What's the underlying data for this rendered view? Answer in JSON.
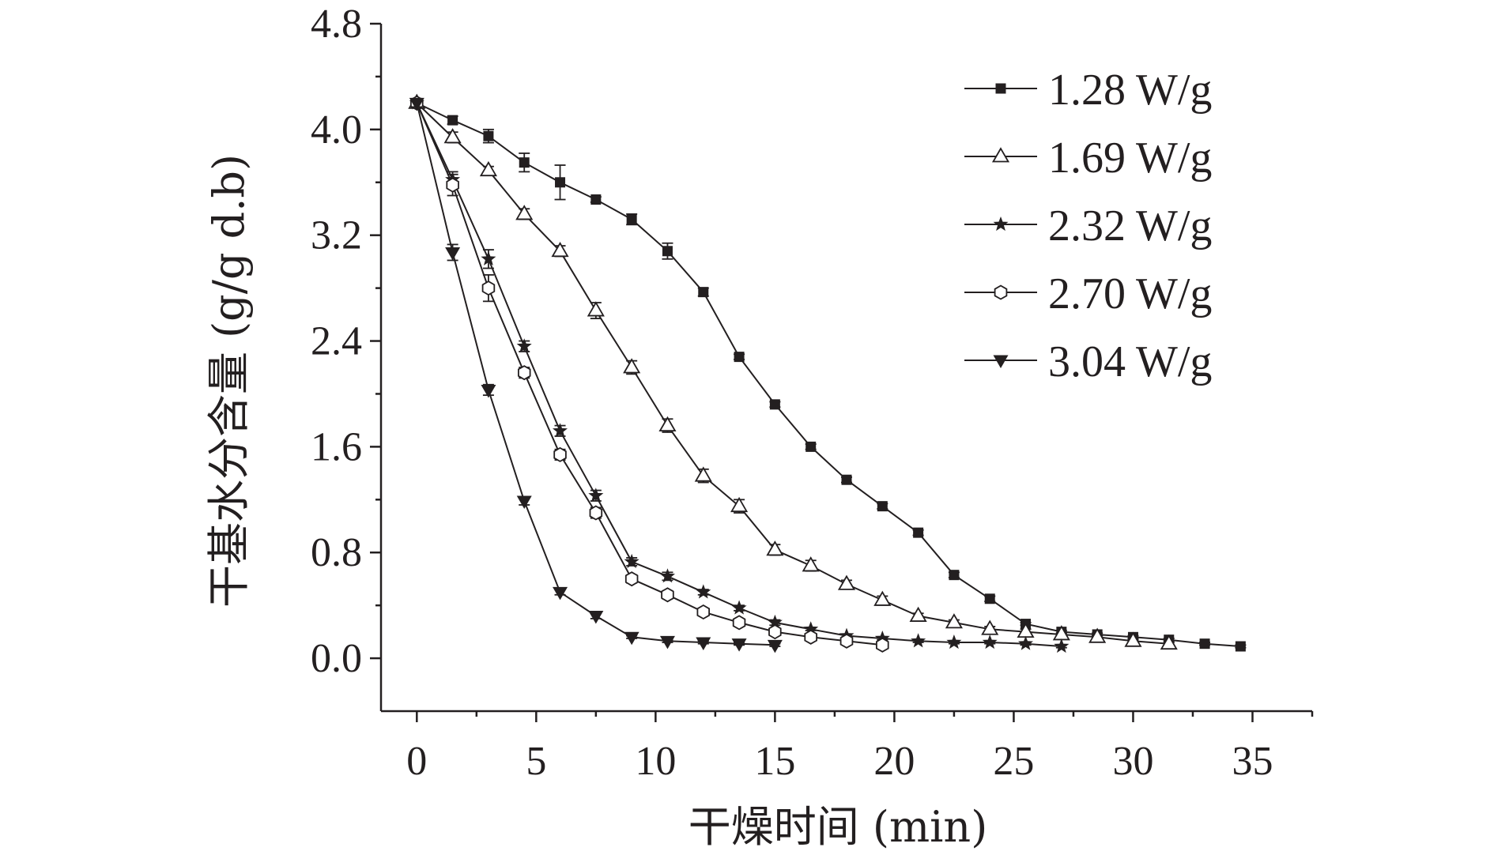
{
  "chart_data": {
    "type": "line",
    "xlabel": "干燥时间 (min)",
    "ylabel": "干基水分含量 (g/g d.b)",
    "xlim": [
      -1.5,
      37.5
    ],
    "ylim": [
      -0.4,
      4.8
    ],
    "xticks": [
      0,
      5,
      10,
      15,
      20,
      25,
      30,
      35
    ],
    "yticks": [
      0.0,
      0.8,
      1.6,
      2.4,
      3.2,
      4.0,
      4.8
    ],
    "ytick_labels": [
      "0.0",
      "0.8",
      "1.6",
      "2.4",
      "3.2",
      "4.0",
      "4.8"
    ],
    "grid": false,
    "legend_position": "top-right",
    "series": [
      {
        "name": "1.28 W/g",
        "marker": "square-filled",
        "x": [
          0,
          1.5,
          3,
          4.5,
          6,
          7.5,
          9,
          10.5,
          12,
          13.5,
          15,
          16.5,
          18,
          19.5,
          21,
          22.5,
          24,
          25.5,
          27,
          28.5,
          30,
          31.5,
          33,
          34.5
        ],
        "y": [
          4.2,
          4.07,
          3.95,
          3.75,
          3.6,
          3.47,
          3.32,
          3.08,
          2.77,
          2.28,
          1.92,
          1.6,
          1.35,
          1.15,
          0.95,
          0.63,
          0.45,
          0.26,
          0.2,
          0.18,
          0.16,
          0.14,
          0.11,
          0.09
        ],
        "err": [
          0.03,
          0.03,
          0.05,
          0.07,
          0.13,
          0.02,
          0.04,
          0.06,
          0.03,
          0.02,
          0.02,
          0.02,
          0.02,
          0.02,
          0.02,
          0.02,
          0.02,
          0.01,
          0.01,
          0.01,
          0.01,
          0.01,
          0.01,
          0.01
        ]
      },
      {
        "name": "1.69 W/g",
        "marker": "triangle-open",
        "x": [
          0,
          1.5,
          3,
          4.5,
          6,
          7.5,
          9,
          10.5,
          12,
          13.5,
          15,
          16.5,
          18,
          19.5,
          21,
          22.5,
          24,
          25.5,
          27,
          28.5,
          30,
          31.5
        ],
        "y": [
          4.2,
          3.94,
          3.69,
          3.36,
          3.08,
          2.63,
          2.2,
          1.76,
          1.38,
          1.15,
          0.82,
          0.7,
          0.56,
          0.44,
          0.32,
          0.27,
          0.22,
          0.2,
          0.18,
          0.16,
          0.13,
          0.11
        ],
        "err": [
          0.03,
          0.04,
          0.03,
          0.04,
          0.04,
          0.06,
          0.05,
          0.05,
          0.05,
          0.05,
          0.04,
          0.04,
          0.03,
          0.03,
          0.02,
          0.02,
          0.02,
          0.02,
          0.01,
          0.01,
          0.01,
          0.01
        ]
      },
      {
        "name": "2.32 W/g",
        "marker": "star-filled",
        "x": [
          0,
          1.5,
          3,
          4.5,
          6,
          7.5,
          9,
          10.5,
          12,
          13.5,
          15,
          16.5,
          18,
          19.5,
          21,
          22.5,
          24,
          25.5,
          27
        ],
        "y": [
          4.2,
          3.62,
          3.02,
          2.36,
          1.72,
          1.23,
          0.73,
          0.62,
          0.5,
          0.38,
          0.27,
          0.22,
          0.17,
          0.15,
          0.13,
          0.12,
          0.12,
          0.11,
          0.09
        ],
        "err": [
          0.03,
          0.06,
          0.07,
          0.04,
          0.04,
          0.04,
          0.03,
          0.03,
          0.02,
          0.02,
          0.02,
          0.01,
          0.01,
          0.01,
          0.01,
          0.01,
          0.01,
          0.01,
          0.01
        ]
      },
      {
        "name": "2.70 W/g",
        "marker": "hexagon-open",
        "x": [
          0,
          1.5,
          3,
          4.5,
          6,
          7.5,
          9,
          10.5,
          12,
          13.5,
          15,
          16.5,
          18,
          19.5
        ],
        "y": [
          4.2,
          3.58,
          2.8,
          2.16,
          1.54,
          1.1,
          0.6,
          0.48,
          0.35,
          0.27,
          0.2,
          0.16,
          0.13,
          0.1
        ],
        "err": [
          0.03,
          0.08,
          0.1,
          0.04,
          0.04,
          0.04,
          0.03,
          0.03,
          0.02,
          0.02,
          0.02,
          0.01,
          0.01,
          0.01
        ]
      },
      {
        "name": "3.04 W/g",
        "marker": "triangle-down-filled",
        "x": [
          0,
          1.5,
          3,
          4.5,
          6,
          7.5,
          9,
          10.5,
          12,
          13.5,
          15
        ],
        "y": [
          4.2,
          3.07,
          2.03,
          1.19,
          0.5,
          0.32,
          0.16,
          0.13,
          0.12,
          0.11,
          0.1
        ],
        "err": [
          0.03,
          0.06,
          0.04,
          0.03,
          0.02,
          0.02,
          0.01,
          0.01,
          0.01,
          0.01,
          0.01
        ]
      }
    ]
  }
}
